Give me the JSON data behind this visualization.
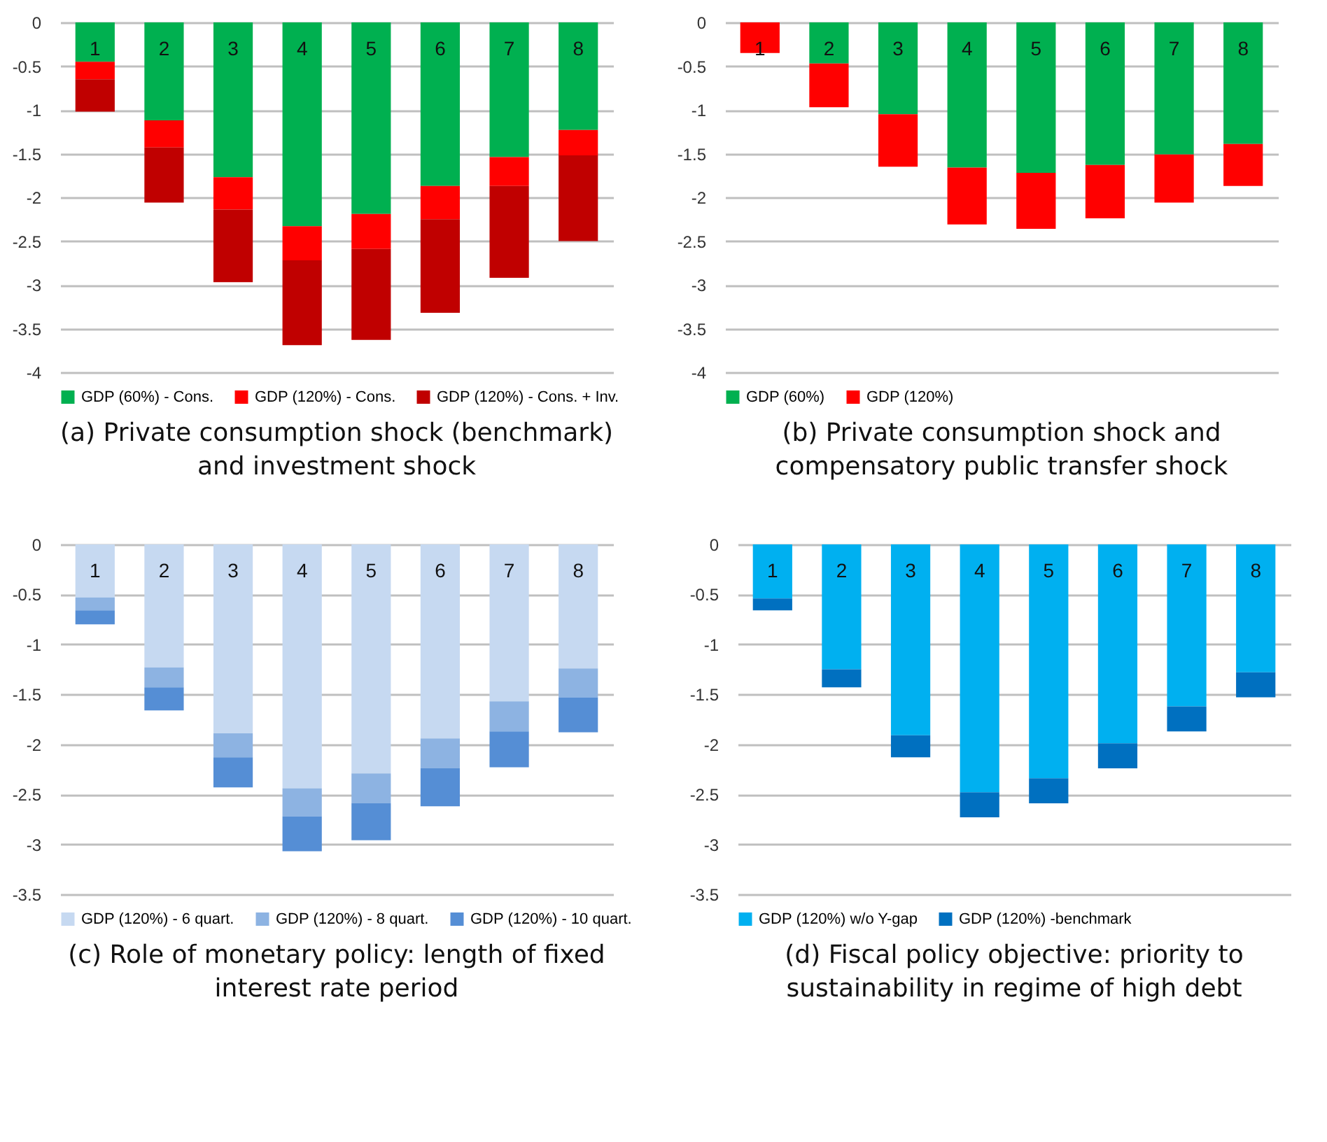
{
  "chart_data": [
    {
      "type": "bar",
      "title": "(a) Private consumption shock (benchmark) and investment shock",
      "categories": [
        "1",
        "2",
        "3",
        "4",
        "5",
        "6",
        "7",
        "8"
      ],
      "stacked": true,
      "series": [
        {
          "name": "GDP (60%) - Cons.",
          "color": "#00b050",
          "values": [
            -0.45,
            -1.12,
            -1.77,
            -2.33,
            -2.19,
            -1.87,
            -1.54,
            -1.23
          ]
        },
        {
          "name": "GDP (120%) - Cons.",
          "color": "#ff0000",
          "values": [
            -0.2,
            -0.31,
            -0.37,
            -0.39,
            -0.4,
            -0.38,
            -0.33,
            -0.29
          ]
        },
        {
          "name": "GDP (120%) - Cons. + Inv.",
          "color": "#c00000",
          "values": [
            -0.37,
            -0.63,
            -0.83,
            -0.97,
            -1.04,
            -1.07,
            -1.05,
            -0.98
          ]
        }
      ],
      "ylim": [
        -4,
        0
      ],
      "yticks": [
        -4,
        -3.5,
        -3,
        -2.5,
        -2,
        -1.5,
        -1,
        -0.5,
        0
      ],
      "grid": "y",
      "legend": "bottom"
    },
    {
      "type": "bar",
      "title": "(b) Private consumption shock and compensatory public transfer shock",
      "categories": [
        "1",
        "2",
        "3",
        "4",
        "5",
        "6",
        "7",
        "8"
      ],
      "stacked": true,
      "series": [
        {
          "name": "GDP (60%)",
          "color": "#00b050",
          "values": [
            0,
            -0.47,
            -1.05,
            -1.66,
            -1.72,
            -1.63,
            -1.51,
            -1.39
          ]
        },
        {
          "name": "GDP (120%)",
          "color": "#ff0000",
          "values": [
            -0.35,
            -0.5,
            -0.6,
            -0.65,
            -0.64,
            -0.61,
            -0.55,
            -0.48
          ]
        }
      ],
      "ylim": [
        -4,
        0
      ],
      "yticks": [
        -4,
        -3.5,
        -3,
        -2.5,
        -2,
        -1.5,
        -1,
        -0.5,
        0
      ],
      "grid": "y",
      "legend": "bottom"
    },
    {
      "type": "bar",
      "title": "(c) Role of monetary policy: length of fixed interest rate period",
      "categories": [
        "1",
        "2",
        "3",
        "4",
        "5",
        "6",
        "7",
        "8"
      ],
      "stacked": true,
      "series": [
        {
          "name": "GDP (120%) - 6 quart.",
          "color": "#c6d9f1",
          "values": [
            -0.53,
            -1.23,
            -1.89,
            -2.44,
            -2.29,
            -1.94,
            -1.57,
            -1.24
          ]
        },
        {
          "name": "GDP (120%) - 8 quart.",
          "color": "#8db3e2",
          "values": [
            -0.13,
            -0.2,
            -0.24,
            -0.28,
            -0.3,
            -0.3,
            -0.3,
            -0.29
          ]
        },
        {
          "name": "GDP (120%) - 10 quart.",
          "color": "#558ed5",
          "values": [
            -0.14,
            -0.23,
            -0.3,
            -0.35,
            -0.37,
            -0.38,
            -0.36,
            -0.35
          ]
        }
      ],
      "ylim": [
        -3.5,
        0
      ],
      "yticks": [
        -3.5,
        -3,
        -2.5,
        -2,
        -1.5,
        -1,
        -0.5,
        0
      ],
      "grid": "y",
      "legend": "bottom"
    },
    {
      "type": "bar",
      "title": "(d) Fiscal policy objective: priority to sustainability in regime of high debt",
      "categories": [
        "1",
        "2",
        "3",
        "4",
        "5",
        "6",
        "7",
        "8"
      ],
      "stacked": true,
      "series": [
        {
          "name": "GDP (120%) w/o Y-gap",
          "color": "#00b0f0",
          "values": [
            -0.54,
            -1.25,
            -1.91,
            -2.48,
            -2.34,
            -1.99,
            -1.62,
            -1.28
          ]
        },
        {
          "name": "GDP (120%) -benchmark",
          "color": "#0070c0",
          "values": [
            -0.12,
            -0.18,
            -0.22,
            -0.25,
            -0.25,
            -0.25,
            -0.25,
            -0.25
          ]
        }
      ],
      "ylim": [
        -3.5,
        0
      ],
      "yticks": [
        -3.5,
        -3,
        -2.5,
        -2,
        -1.5,
        -1,
        -0.5,
        0
      ],
      "grid": "y",
      "legend": "bottom"
    }
  ]
}
